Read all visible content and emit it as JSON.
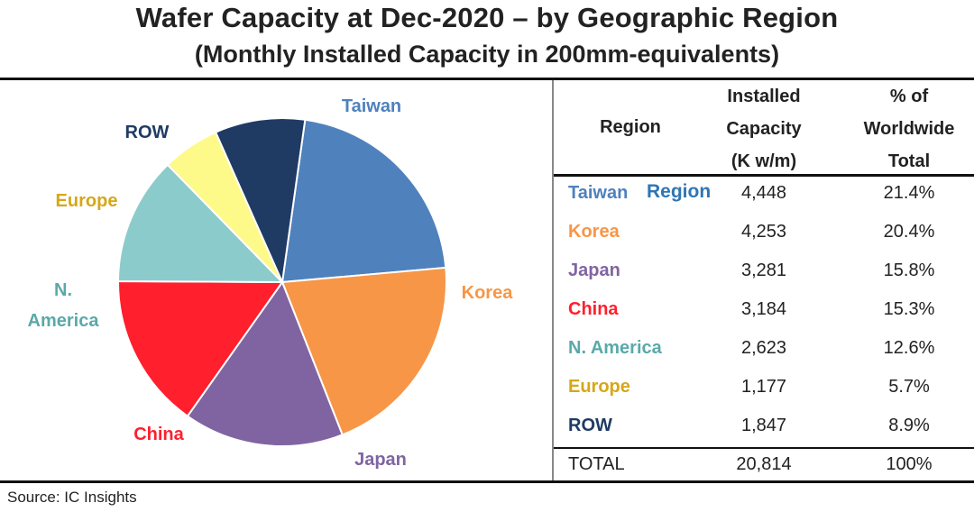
{
  "title": "Wafer Capacity at Dec-2020 – by Geographic Region",
  "subtitle": "(Monthly Installed Capacity in 200mm-equivalents)",
  "source": "Source:  IC Insights",
  "overlay_label": "Region",
  "colors": {
    "taiwan": "#4f81bd",
    "korea": "#f79646",
    "japan": "#8064a2",
    "china": "#ff1f2d",
    "n_america": "#8ccbcb",
    "europe": "#fdfa8a",
    "row": "#1f3b64",
    "pie_stroke": "#ffffff"
  },
  "chart_data": [
    {
      "type": "pie",
      "title": "Wafer Capacity at Dec-2020 – by Geographic Region",
      "subtitle": "(Monthly Installed Capacity in 200mm-equivalents)",
      "slices": [
        {
          "key": "taiwan",
          "label": "Taiwan",
          "label_lines": [
            "Taiwan"
          ],
          "value": 4448,
          "label_color": "#4f81bd"
        },
        {
          "key": "korea",
          "label": "Korea",
          "label_lines": [
            "Korea"
          ],
          "value": 4253,
          "label_color": "#f79646"
        },
        {
          "key": "japan",
          "label": "Japan",
          "label_lines": [
            "Japan"
          ],
          "value": 3281,
          "label_color": "#8064a2"
        },
        {
          "key": "china",
          "label": "China",
          "label_lines": [
            "China"
          ],
          "value": 3184,
          "label_color": "#ff1f2d"
        },
        {
          "key": "n_america",
          "label": "N. America",
          "label_lines": [
            "N.",
            "America"
          ],
          "value": 2623,
          "label_color": "#5aa9a9"
        },
        {
          "key": "europe",
          "label": "Europe",
          "label_lines": [
            "Europe"
          ],
          "value": 1177,
          "label_color": "#d6a717"
        },
        {
          "key": "row",
          "label": "ROW",
          "label_lines": [
            "ROW"
          ],
          "value": 1847,
          "label_color": "#1f3b64"
        }
      ]
    },
    {
      "type": "table",
      "headers": {
        "region": "Region",
        "capacity": [
          "Installed",
          "Capacity",
          "(K w/m)"
        ],
        "share": [
          "% of",
          "Worldwide",
          "Total"
        ]
      },
      "rows": [
        {
          "region": "Taiwan",
          "capacity": "4,448",
          "share": "21.4%",
          "color": "#4f81bd"
        },
        {
          "region": "Korea",
          "capacity": "4,253",
          "share": "20.4%",
          "color": "#f79646"
        },
        {
          "region": "Japan",
          "capacity": "3,281",
          "share": "15.8%",
          "color": "#8064a2"
        },
        {
          "region": "China",
          "capacity": "3,184",
          "share": "15.3%",
          "color": "#ff1f2d"
        },
        {
          "region": "N. America",
          "capacity": "2,623",
          "share": "12.6%",
          "color": "#5aa9a9"
        },
        {
          "region": "Europe",
          "capacity": "1,177",
          "share": "5.7%",
          "color": "#d6a717"
        },
        {
          "region": "ROW",
          "capacity": "1,847",
          "share": "8.9%",
          "color": "#1f3b64"
        }
      ],
      "total": {
        "region": "TOTAL",
        "capacity": "20,814",
        "share": "100%"
      }
    }
  ]
}
